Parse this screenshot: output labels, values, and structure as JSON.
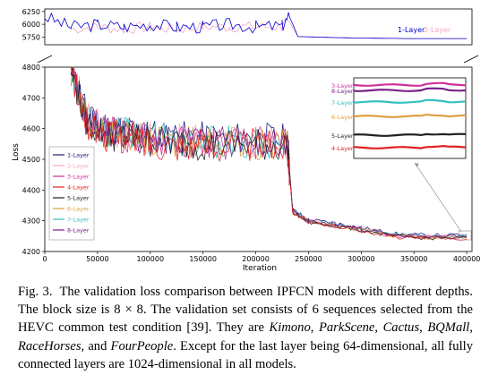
{
  "chart_data": [
    {
      "type": "line",
      "panel": "top",
      "ylim": [
        5600,
        6300
      ],
      "yticks": [
        "6250",
        "6000",
        "5750"
      ],
      "series": [
        {
          "name": "1-Layer",
          "color": "#0000cc"
        },
        {
          "name": "2-Layer",
          "color": "#f4a6c8"
        }
      ],
      "x": [
        0,
        25000,
        50000,
        75000,
        100000,
        125000,
        150000,
        175000,
        200000,
        225000,
        232000,
        240000,
        275000,
        300000,
        350000,
        400000
      ],
      "values_1layer": [
        6150,
        5950,
        6000,
        5950,
        6000,
        5950,
        5950,
        6000,
        5950,
        5970,
        6150,
        5760,
        5740,
        5730,
        5720,
        5720
      ],
      "values_2layer": [
        null,
        5900,
        5950,
        5900,
        5950,
        5900,
        5950,
        5950,
        5950,
        5950,
        6050,
        5760,
        5740,
        5730,
        5720,
        5720
      ]
    },
    {
      "type": "line",
      "panel": "main",
      "ylabel": "Loss",
      "xlabel": "Iteration",
      "xlim": [
        0,
        405000
      ],
      "ylim": [
        4200,
        4800
      ],
      "xticks": [
        "0",
        "50000",
        "100000",
        "150000",
        "200000",
        "250000",
        "300000",
        "350000",
        "400000"
      ],
      "xtick_values": [
        0,
        50000,
        100000,
        150000,
        200000,
        250000,
        300000,
        350000,
        400000
      ],
      "yticks": [
        "4200",
        "4300",
        "4400",
        "4500",
        "4600",
        "4700",
        "4800"
      ],
      "ytick_values": [
        4200,
        4300,
        4400,
        4500,
        4600,
        4700,
        4800
      ],
      "legend_position": "lower-left",
      "series": [
        {
          "name": "1-Layer",
          "color": "#1a1a80",
          "offset": 30
        },
        {
          "name": "2-Layer",
          "color": "#f4a6c8",
          "offset": 22
        },
        {
          "name": "3-Layer",
          "color": "#d0309a",
          "offset": 6
        },
        {
          "name": "4-Layer",
          "color": "#e02020",
          "offset": -8
        },
        {
          "name": "5-Layer",
          "color": "#222222",
          "offset": -2
        },
        {
          "name": "6-Layer",
          "color": "#e0a040",
          "offset": 4
        },
        {
          "name": "7-Layer",
          "color": "#30c0c0",
          "offset": 14
        },
        {
          "name": "8-Layer",
          "color": "#7a2088",
          "offset": 10
        }
      ],
      "x": [
        25000,
        40000,
        60000,
        80000,
        100000,
        130000,
        160000,
        200000,
        230000,
        235000,
        250000,
        275000,
        300000,
        330000,
        360000,
        400000
      ],
      "baseline": [
        4790,
        4620,
        4580,
        4575,
        4560,
        4555,
        4550,
        4550,
        4545,
        4330,
        4295,
        4285,
        4270,
        4250,
        4245,
        4245
      ],
      "inset": {
        "labels": [
          "3-Layer",
          "8-Layer",
          "7-Layer",
          "6-Layer",
          "5-Layer",
          "4-Layer"
        ],
        "colors": [
          "#d0309a",
          "#7a2088",
          "#30c0c0",
          "#e0a040",
          "#222222",
          "#e02020"
        ]
      }
    }
  ],
  "caption": {
    "label": "Fig. 3.",
    "text_1": "The validation loss comparison between IPFCN models with different depths. The block size is 8 × 8. The validation set consists of 6 sequences selected from the HEVC common test condition [39]. They are ",
    "names": [
      "Kimono",
      "ParkScene",
      "Cactus",
      "BQMall",
      "RaceHorses",
      "FourPeople"
    ],
    "sep_1": ", ",
    "sep_2": ", ",
    "sep_3": ", ",
    "sep_4": ", ",
    "sep_and": ", and ",
    "text_2": ". Except for the last layer being 64-dimensional, all fully connected layers are 1024-dimensional in all models."
  }
}
